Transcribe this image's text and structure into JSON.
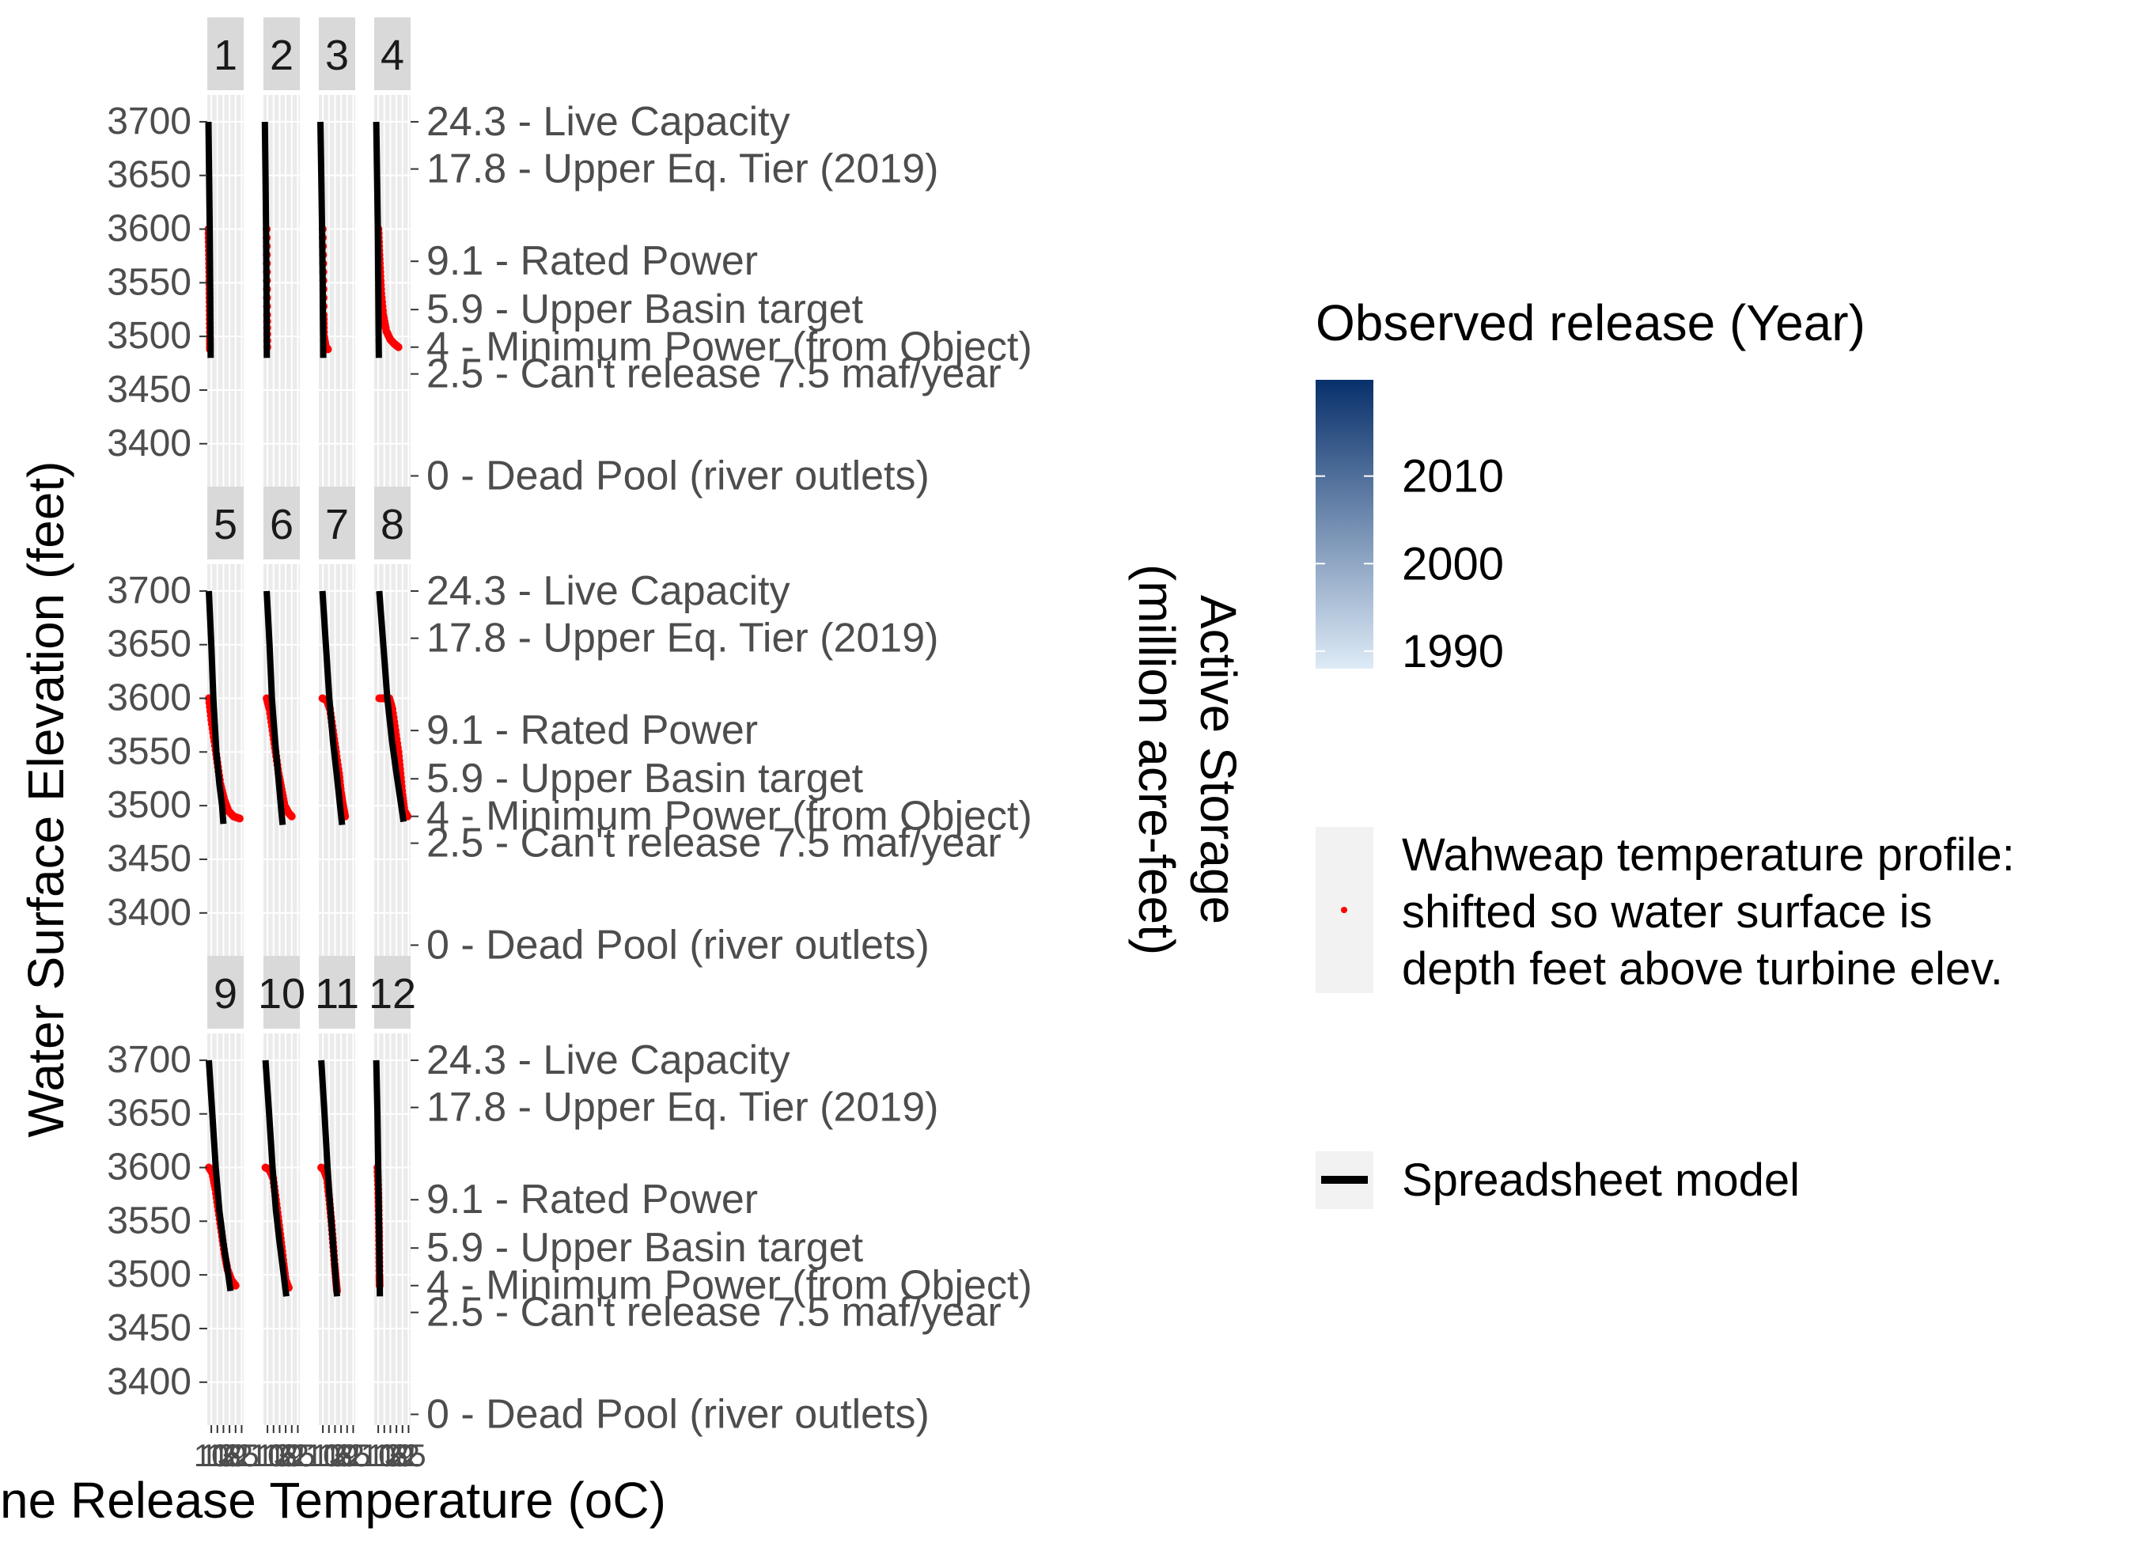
{
  "chart_data": {
    "type": "scatter",
    "x_axis_label": "Turbine Release Temperature (oC)",
    "x_axis_label_visible": "ne Release Temperature (oC)",
    "y_axis_label": "Water Surface Elevation (feet)",
    "y2_axis_label_lines": [
      "Active Storage",
      "(million acre-feet)"
    ],
    "ylim": [
      3360,
      3725
    ],
    "y_ticks": [
      3400,
      3450,
      3500,
      3550,
      3600,
      3650,
      3700
    ],
    "xlim": [
      8,
      26
    ],
    "x_ticks": [
      10,
      13,
      16,
      19,
      22,
      25
    ],
    "x_tick_labels": [
      "10",
      "13",
      "16",
      "19",
      "22",
      "25"
    ],
    "secondary_axis": [
      {
        "value": 3700,
        "label": "24.3 - Live Capacity"
      },
      {
        "value": 3656,
        "label": "17.8 - Upper Eq. Tier (2019)"
      },
      {
        "value": 3570,
        "label": "9.1 - Rated Power"
      },
      {
        "value": 3525,
        "label": "5.9 - Upper Basin target"
      },
      {
        "value": 3490,
        "label": "4 - Minimum Power (from Object)"
      },
      {
        "value": 3465,
        "label": "2.5 - Can't release 7.5 maf/year"
      },
      {
        "value": 3370,
        "label": "0 - Dead Pool (river outlets)"
      }
    ],
    "grid": true,
    "legend": {
      "position": "right",
      "color_title": "Observed release (Year)",
      "color_breaks": [
        2010,
        2000,
        1990
      ],
      "color_range": [
        1988,
        2021
      ],
      "color_low": "#deebf7",
      "color_high": "#08306b",
      "profile_label_lines": [
        "Wahweap temperature profile:",
        "shifted so water surface is",
        "depth feet above turbine elev."
      ],
      "model_label": "Spreadsheet model"
    },
    "point_color": "#ff0000",
    "model_color": "#000000",
    "panels": [
      {
        "label": "1",
        "model": [
          [
            8.6,
            3700
          ],
          [
            8.9,
            3650
          ],
          [
            9.2,
            3600
          ],
          [
            9.4,
            3550
          ],
          [
            9.6,
            3500
          ],
          [
            9.7,
            3480
          ]
        ],
        "profile": [
          [
            8.6,
            3600
          ],
          [
            8.8,
            3580
          ],
          [
            9.0,
            3560
          ],
          [
            9.1,
            3540
          ],
          [
            9.2,
            3520
          ],
          [
            9.3,
            3500
          ],
          [
            9.3,
            3488
          ]
        ]
      },
      {
        "label": "2",
        "model": [
          [
            8.7,
            3700
          ],
          [
            9.0,
            3650
          ],
          [
            9.3,
            3600
          ],
          [
            9.5,
            3550
          ],
          [
            9.6,
            3500
          ],
          [
            9.7,
            3480
          ]
        ],
        "profile": [
          [
            9.6,
            3600
          ],
          [
            9.7,
            3560
          ],
          [
            9.8,
            3520
          ],
          [
            9.9,
            3490
          ]
        ]
      },
      {
        "label": "3",
        "model": [
          [
            8.8,
            3700
          ],
          [
            9.2,
            3650
          ],
          [
            9.6,
            3600
          ],
          [
            9.9,
            3550
          ],
          [
            10.1,
            3500
          ],
          [
            10.2,
            3480
          ]
        ],
        "profile": [
          [
            9.9,
            3600
          ],
          [
            10.2,
            3560
          ],
          [
            10.4,
            3520
          ],
          [
            10.6,
            3500
          ],
          [
            11.5,
            3490
          ],
          [
            12.5,
            3488
          ]
        ]
      },
      {
        "label": "4",
        "model": [
          [
            9.0,
            3700
          ],
          [
            9.4,
            3650
          ],
          [
            9.8,
            3600
          ],
          [
            10.0,
            3550
          ],
          [
            10.2,
            3500
          ],
          [
            10.3,
            3480
          ]
        ],
        "profile": [
          [
            10.1,
            3600
          ],
          [
            10.5,
            3580
          ],
          [
            11.0,
            3560
          ],
          [
            11.5,
            3540
          ],
          [
            12.5,
            3520
          ],
          [
            14.0,
            3505
          ],
          [
            16.0,
            3497
          ],
          [
            18.0,
            3493
          ],
          [
            20.0,
            3490
          ]
        ]
      },
      {
        "label": "5",
        "model": [
          [
            8.8,
            3700
          ],
          [
            10.0,
            3650
          ],
          [
            11.0,
            3600
          ],
          [
            12.5,
            3550
          ],
          [
            14.0,
            3520
          ],
          [
            15.3,
            3500
          ],
          [
            16.0,
            3483
          ]
        ],
        "profile": [
          [
            8.8,
            3600
          ],
          [
            10.0,
            3580
          ],
          [
            11.5,
            3560
          ],
          [
            13.0,
            3540
          ],
          [
            14.5,
            3520
          ],
          [
            16.5,
            3505
          ],
          [
            18.5,
            3495
          ],
          [
            21.0,
            3490
          ],
          [
            24.0,
            3488
          ]
        ]
      },
      {
        "label": "6",
        "model": [
          [
            9.6,
            3700
          ],
          [
            11.0,
            3650
          ],
          [
            12.2,
            3600
          ],
          [
            13.8,
            3560
          ],
          [
            15.2,
            3530
          ],
          [
            16.6,
            3500
          ],
          [
            17.5,
            3482
          ]
        ],
        "profile": [
          [
            9.6,
            3600
          ],
          [
            11.0,
            3590
          ],
          [
            12.5,
            3570
          ],
          [
            14.0,
            3550
          ],
          [
            15.5,
            3530
          ],
          [
            17.0,
            3515
          ],
          [
            18.5,
            3500
          ],
          [
            20.5,
            3493
          ],
          [
            22.0,
            3490
          ]
        ]
      },
      {
        "label": "7",
        "model": [
          [
            9.8,
            3700
          ],
          [
            11.5,
            3650
          ],
          [
            13.2,
            3600
          ],
          [
            15.0,
            3560
          ],
          [
            16.8,
            3530
          ],
          [
            18.5,
            3500
          ],
          [
            19.5,
            3482
          ]
        ],
        "profile": [
          [
            9.8,
            3600
          ],
          [
            12.0,
            3598
          ],
          [
            13.5,
            3590
          ],
          [
            15.0,
            3570
          ],
          [
            16.5,
            3550
          ],
          [
            18.0,
            3530
          ],
          [
            19.0,
            3512
          ],
          [
            20.0,
            3500
          ],
          [
            21.0,
            3490
          ]
        ]
      },
      {
        "label": "8",
        "model": [
          [
            10.5,
            3700
          ],
          [
            12.5,
            3650
          ],
          [
            14.5,
            3600
          ],
          [
            16.8,
            3560
          ],
          [
            19.0,
            3530
          ],
          [
            21.0,
            3505
          ],
          [
            22.5,
            3485
          ]
        ],
        "profile": [
          [
            10.5,
            3600
          ],
          [
            13.0,
            3600
          ],
          [
            15.5,
            3600
          ],
          [
            17.0,
            3590
          ],
          [
            18.5,
            3570
          ],
          [
            20.0,
            3550
          ],
          [
            21.0,
            3530
          ],
          [
            22.0,
            3510
          ],
          [
            23.0,
            3495
          ],
          [
            24.5,
            3490
          ]
        ]
      },
      {
        "label": "9",
        "model": [
          [
            8.8,
            3700
          ],
          [
            10.5,
            3650
          ],
          [
            12.2,
            3600
          ],
          [
            14.0,
            3560
          ],
          [
            16.0,
            3530
          ],
          [
            18.0,
            3505
          ],
          [
            19.5,
            3485
          ]
        ],
        "profile": [
          [
            8.8,
            3600
          ],
          [
            10.5,
            3595
          ],
          [
            12.0,
            3580
          ],
          [
            13.5,
            3560
          ],
          [
            15.0,
            3540
          ],
          [
            16.5,
            3520
          ],
          [
            18.0,
            3505
          ],
          [
            20.0,
            3495
          ],
          [
            22.0,
            3490
          ]
        ]
      },
      {
        "label": "10",
        "model": [
          [
            9.0,
            3700
          ],
          [
            10.8,
            3650
          ],
          [
            12.5,
            3600
          ],
          [
            14.2,
            3560
          ],
          [
            16.0,
            3530
          ],
          [
            18.0,
            3500
          ],
          [
            19.3,
            3480
          ]
        ],
        "profile": [
          [
            9.0,
            3600
          ],
          [
            11.0,
            3598
          ],
          [
            12.8,
            3590
          ],
          [
            14.2,
            3570
          ],
          [
            15.5,
            3550
          ],
          [
            16.8,
            3530
          ],
          [
            18.0,
            3510
          ],
          [
            19.0,
            3495
          ],
          [
            20.5,
            3488
          ]
        ]
      },
      {
        "label": "11",
        "model": [
          [
            9.2,
            3700
          ],
          [
            10.8,
            3650
          ],
          [
            12.3,
            3600
          ],
          [
            13.8,
            3560
          ],
          [
            15.0,
            3530
          ],
          [
            16.2,
            3500
          ],
          [
            17.0,
            3480
          ]
        ],
        "profile": [
          [
            9.2,
            3600
          ],
          [
            10.5,
            3598
          ],
          [
            12.0,
            3590
          ],
          [
            13.2,
            3570
          ],
          [
            14.2,
            3550
          ],
          [
            15.0,
            3530
          ],
          [
            15.8,
            3510
          ],
          [
            16.5,
            3495
          ],
          [
            17.0,
            3485
          ]
        ]
      },
      {
        "label": "12",
        "model": [
          [
            9.0,
            3700
          ],
          [
            9.6,
            3650
          ],
          [
            10.0,
            3600
          ],
          [
            10.4,
            3550
          ],
          [
            10.7,
            3500
          ],
          [
            10.8,
            3480
          ]
        ],
        "profile": [
          [
            9.6,
            3600
          ],
          [
            10.0,
            3580
          ],
          [
            10.2,
            3560
          ],
          [
            10.4,
            3540
          ],
          [
            10.5,
            3520
          ],
          [
            10.6,
            3500
          ],
          [
            10.7,
            3490
          ]
        ]
      }
    ]
  }
}
